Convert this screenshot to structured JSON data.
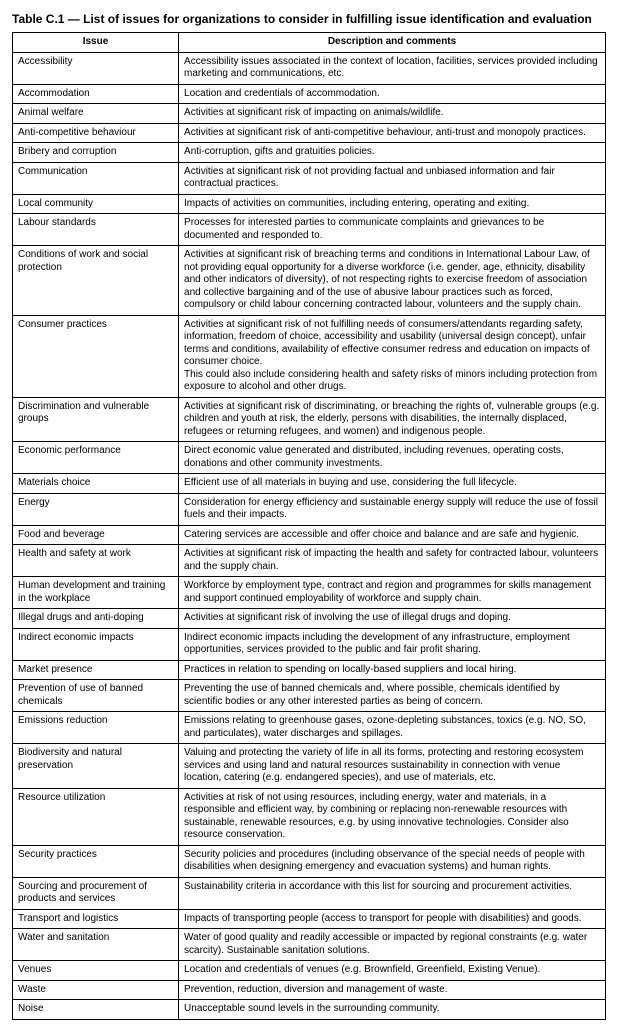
{
  "title": "Table C.1 — List of issues for organizations to consider in fulfilling issue identification and evaluation",
  "headers": {
    "issue": "Issue",
    "desc": "Description and comments"
  },
  "rows": [
    {
      "issue": "Accessibility",
      "desc": "Accessibility issues associated in the context of location, facilities, services provided including marketing and communications, etc."
    },
    {
      "issue": "Accommodation",
      "desc": "Location and credentials of accommodation."
    },
    {
      "issue": "Animal welfare",
      "desc": "Activities at significant risk of impacting on animals/wildlife."
    },
    {
      "issue": "Anti-competitive behaviour",
      "desc": "Activities at significant risk of anti-competitive behaviour, anti-trust and monopoly practices."
    },
    {
      "issue": "Bribery and corruption",
      "desc": "Anti-corruption, gifts and gratuities policies."
    },
    {
      "issue": "Communication",
      "desc": "Activities at significant risk of not providing factual and unbiased information and fair contractual practices."
    },
    {
      "issue": "Local community",
      "desc": "Impacts of activities on communities, including entering, operating and exiting."
    },
    {
      "issue": "Labour standards",
      "desc": "Processes for interested parties to communicate complaints and grievances to be documented and responded to."
    },
    {
      "issue": "Conditions of work and social protection",
      "desc": "Activities at significant risk of breaching terms and conditions in International Labour Law, of not providing equal opportunity for a diverse workforce (i.e. gender, age, ethnicity, disability and other indicators of diversity), of not respecting rights to exercise freedom of association and collective bargaining and of the use of abusive labour practices such as forced, compulsory or child labour concerning contracted labour, volunteers and the supply chain."
    },
    {
      "issue": "Consumer practices",
      "desc": "Activities at significant risk of not fulfilling needs of consumers/attendants regarding safety, information, freedom of choice, accessibility and usability (universal design concept), unfair terms and conditions, availability of effective consumer redress and education on impacts of consumer choice.\nThis could also include considering health and safety risks of minors including protection from exposure to alcohol and other drugs."
    },
    {
      "issue": "Discrimination and vulnerable groups",
      "desc": "Activities at significant risk of discriminating, or breaching the rights of, vulnerable groups (e.g. children and youth at risk, the elderly, persons with disabilities, the internally displaced, refugees or returning refugees, and women) and indigenous people."
    },
    {
      "issue": "Economic performance",
      "desc": "Direct economic value generated and distributed, including revenues, operating costs, donations and other community investments."
    },
    {
      "issue": "Materials choice",
      "desc": "Efficient use of all materials in buying and use, considering the full lifecycle."
    },
    {
      "issue": "Energy",
      "desc": "Consideration for energy efficiency and sustainable energy supply will reduce the use of fossil fuels and their impacts."
    },
    {
      "issue": "Food and beverage",
      "desc": "Catering services are accessible and offer choice and balance and are safe and hygienic."
    },
    {
      "issue": "Health and safety at work",
      "desc": "Activities at significant risk of impacting the health and safety for contracted labour, volunteers and the supply chain."
    },
    {
      "issue": "Human development and training in the workplace",
      "desc": "Workforce by employment type, contract and region and programmes for skills management and support continued employability of workforce and supply chain."
    },
    {
      "issue": "Illegal drugs and anti-doping",
      "desc": "Activities at significant risk of involving the use of illegal drugs and doping."
    },
    {
      "issue": "Indirect economic impacts",
      "desc": "Indirect economic impacts including the development of any infrastructure, employment opportunities, services provided to the public and fair profit sharing."
    },
    {
      "issue": "Market presence",
      "desc": "Practices in relation to spending on locally-based suppliers and local hiring."
    },
    {
      "issue": "Prevention of use of banned chemicals",
      "desc": "Preventing the use of banned chemicals and, where possible, chemicals identified by scientific bodies or any other interested parties as being of concern."
    },
    {
      "issue": "Emissions reduction",
      "desc": "Emissions relating to greenhouse gases, ozone-depleting substances, toxics (e.g. NO, SO, and particulates), water discharges and spillages."
    },
    {
      "issue": "Biodiversity and natural preservation",
      "desc": "Valuing and protecting the variety of life in all its forms, protecting and restoring ecosystem services and using land and natural resources sustainability in connection with venue location, catering (e.g. endangered species), and use of materials, etc."
    },
    {
      "issue": "Resource utilization",
      "desc": "Activities at risk of not using resources, including energy, water and materials, in a responsible and efficient way, by combining or replacing non-renewable resources with sustainable, renewable resources, e.g. by using innovative technologies. Consider also resource conservation."
    },
    {
      "issue": "Security practices",
      "desc": "Security policies and procedures (including observance of the special needs of people with disabilities when designing emergency and evacuation systems) and human rights."
    },
    {
      "issue": "Sourcing and procurement of products and services",
      "desc": "Sustainability criteria in accordance with this list for sourcing and procurement activities."
    },
    {
      "issue": "Transport and logistics",
      "desc": "Impacts of transporting people (access to transport for people with disabilities) and goods."
    },
    {
      "issue": "Water and sanitation",
      "desc": "Water of good quality and readily accessible or impacted by regional constraints (e.g. water scarcity). Sustainable sanitation solutions."
    },
    {
      "issue": "Venues",
      "desc": "Location and credentials of venues (e.g. Brownfield, Greenfield, Existing Venue)."
    },
    {
      "issue": "Waste",
      "desc": "Prevention, reduction, diversion and management of waste."
    },
    {
      "issue": "Noise",
      "desc": "Unacceptable sound levels in the surrounding community."
    }
  ]
}
